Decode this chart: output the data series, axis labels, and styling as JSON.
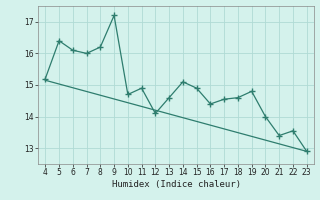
{
  "xlabel": "Humidex (Indice chaleur)",
  "x_vals": [
    4,
    5,
    6,
    7,
    8,
    9,
    10,
    11,
    12,
    13,
    14,
    15,
    16,
    17,
    18,
    19,
    20,
    21,
    22,
    23
  ],
  "y_vals": [
    15.2,
    16.4,
    16.1,
    16.0,
    16.2,
    17.2,
    14.7,
    14.9,
    14.1,
    14.6,
    15.1,
    14.9,
    14.4,
    14.55,
    14.6,
    14.8,
    14.0,
    13.4,
    13.55,
    12.9
  ],
  "trend_x": [
    4,
    23
  ],
  "trend_y": [
    15.15,
    12.9
  ],
  "line_color": "#2e7d6e",
  "bg_color": "#d4f2ec",
  "grid_color": "#b0dbd5",
  "ylim": [
    12.5,
    17.5
  ],
  "xlim": [
    3.5,
    23.5
  ],
  "yticks": [
    13,
    14,
    15,
    16,
    17
  ],
  "xticks": [
    4,
    5,
    6,
    7,
    8,
    9,
    10,
    11,
    12,
    13,
    14,
    15,
    16,
    17,
    18,
    19,
    20,
    21,
    22,
    23
  ]
}
